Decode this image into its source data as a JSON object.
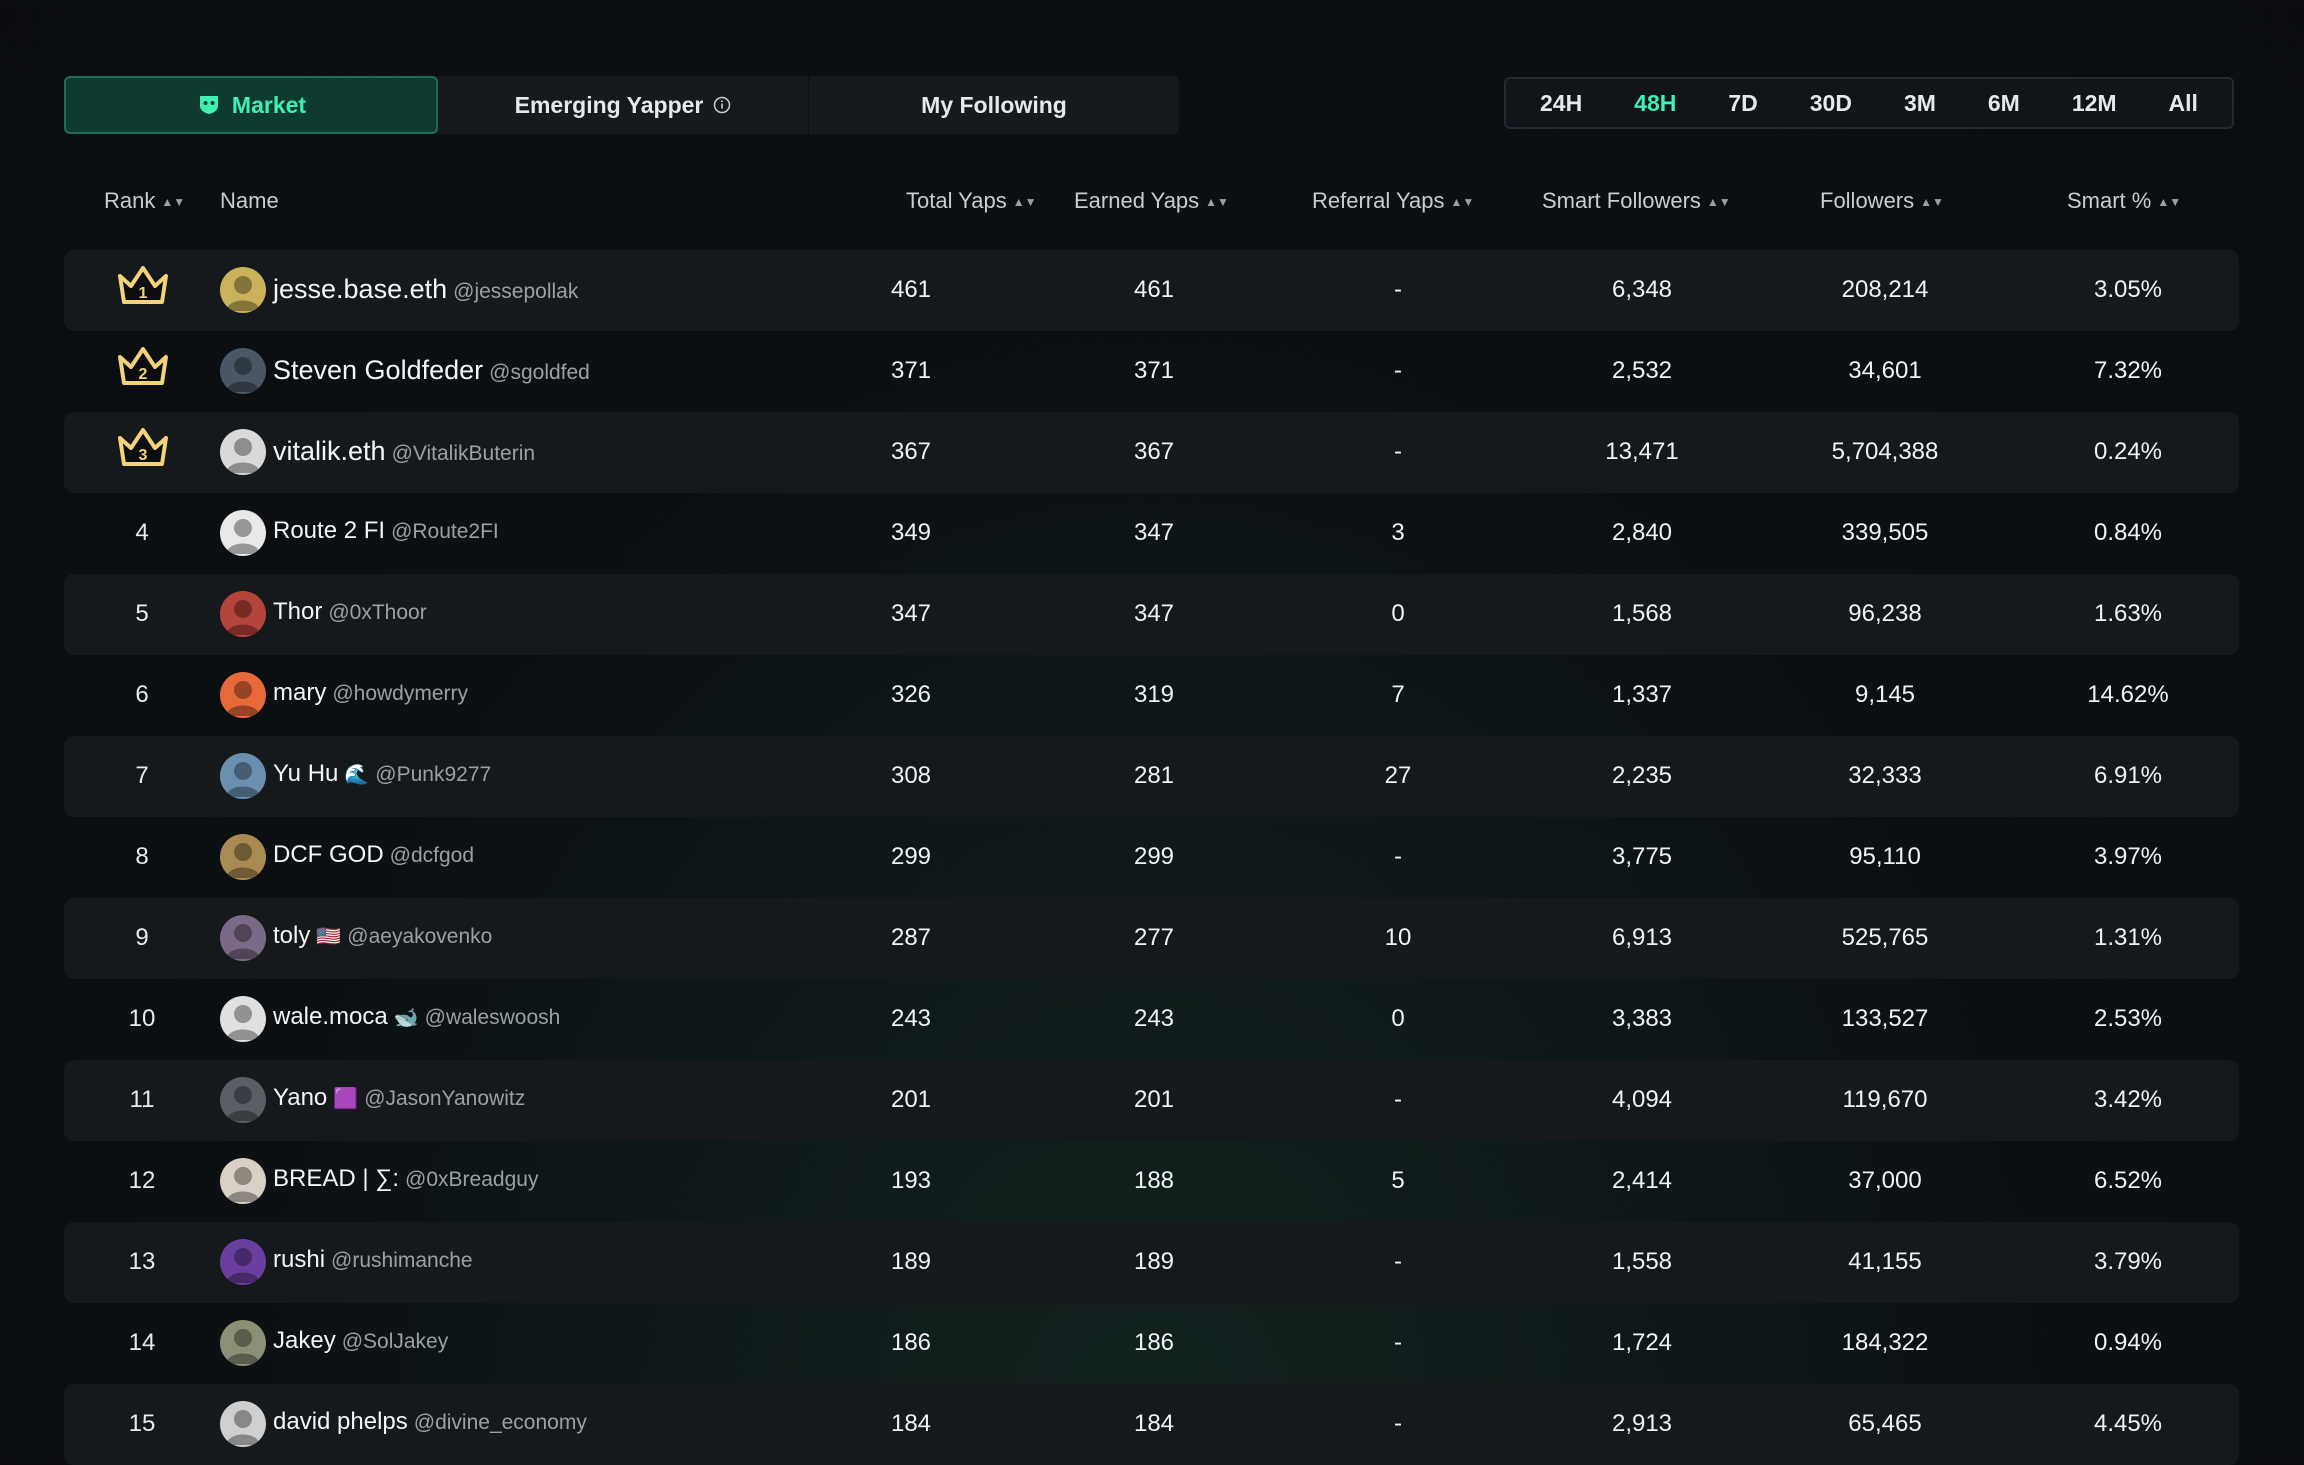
{
  "tabs": [
    {
      "label": "Market",
      "active": true
    },
    {
      "label": "Emerging Yapper",
      "active": false
    },
    {
      "label": "My Following",
      "active": false
    }
  ],
  "time_filters": [
    {
      "label": "24H",
      "active": false
    },
    {
      "label": "48H",
      "active": true
    },
    {
      "label": "7D",
      "active": false
    },
    {
      "label": "30D",
      "active": false
    },
    {
      "label": "3M",
      "active": false
    },
    {
      "label": "6M",
      "active": false
    },
    {
      "label": "12M",
      "active": false
    },
    {
      "label": "All",
      "active": false
    }
  ],
  "columns": {
    "rank": "Rank",
    "name": "Name",
    "total": "Total Yaps",
    "earned": "Earned Yaps",
    "referral": "Referral Yaps",
    "smart_followers": "Smart Followers",
    "followers": "Followers",
    "smart_pct": "Smart %"
  },
  "colors": {
    "accent": "#3ff0b2",
    "crown": "#f2d27a",
    "row_alt": "#16191c"
  },
  "rows": [
    {
      "rank": "1",
      "crown": true,
      "name": "jesse.base.eth",
      "handle": "@jessepollak",
      "total": "461",
      "earned": "461",
      "referral": "-",
      "smart_followers": "6,348",
      "followers": "208,214",
      "smart_pct": "3.05%",
      "avatar_color": "#c9b25a"
    },
    {
      "rank": "2",
      "crown": true,
      "name": "Steven Goldfeder",
      "handle": "@sgoldfed",
      "total": "371",
      "earned": "371",
      "referral": "-",
      "smart_followers": "2,532",
      "followers": "34,601",
      "smart_pct": "7.32%",
      "avatar_color": "#4a5866"
    },
    {
      "rank": "3",
      "crown": true,
      "name": "vitalik.eth",
      "handle": "@VitalikButerin",
      "total": "367",
      "earned": "367",
      "referral": "-",
      "smart_followers": "13,471",
      "followers": "5,704,388",
      "smart_pct": "0.24%",
      "avatar_color": "#d9d9d9"
    },
    {
      "rank": "4",
      "crown": false,
      "name": "Route 2 FI",
      "handle": "@Route2FI",
      "total": "349",
      "earned": "347",
      "referral": "3",
      "smart_followers": "2,840",
      "followers": "339,505",
      "smart_pct": "0.84%",
      "avatar_color": "#e9e9e9"
    },
    {
      "rank": "5",
      "crown": false,
      "name": "Thor",
      "handle": "@0xThoor",
      "total": "347",
      "earned": "347",
      "referral": "0",
      "smart_followers": "1,568",
      "followers": "96,238",
      "smart_pct": "1.63%",
      "avatar_color": "#b5443a"
    },
    {
      "rank": "6",
      "crown": false,
      "name": "mary",
      "handle": "@howdymerry",
      "total": "326",
      "earned": "319",
      "referral": "7",
      "smart_followers": "1,337",
      "followers": "9,145",
      "smart_pct": "14.62%",
      "avatar_color": "#e7693a"
    },
    {
      "rank": "7",
      "crown": false,
      "name": "Yu Hu",
      "emoji": "🌊",
      "handle": "@Punk9277",
      "total": "308",
      "earned": "281",
      "referral": "27",
      "smart_followers": "2,235",
      "followers": "32,333",
      "smart_pct": "6.91%",
      "avatar_color": "#6a8fb0"
    },
    {
      "rank": "8",
      "crown": false,
      "name": "DCF GOD",
      "handle": "@dcfgod",
      "total": "299",
      "earned": "299",
      "referral": "-",
      "smart_followers": "3,775",
      "followers": "95,110",
      "smart_pct": "3.97%",
      "avatar_color": "#a98a52"
    },
    {
      "rank": "9",
      "crown": false,
      "name": "toly",
      "emoji": "🇺🇸",
      "handle": "@aeyakovenko",
      "total": "287",
      "earned": "277",
      "referral": "10",
      "smart_followers": "6,913",
      "followers": "525,765",
      "smart_pct": "1.31%",
      "avatar_color": "#7a6a86"
    },
    {
      "rank": "10",
      "crown": false,
      "name": "wale.moca",
      "emoji": "🐋",
      "handle": "@waleswoosh",
      "total": "243",
      "earned": "243",
      "referral": "0",
      "smart_followers": "3,383",
      "followers": "133,527",
      "smart_pct": "2.53%",
      "avatar_color": "#e0e0e0"
    },
    {
      "rank": "11",
      "crown": false,
      "name": "Yano",
      "emoji": "🟪",
      "handle": "@JasonYanowitz",
      "total": "201",
      "earned": "201",
      "referral": "-",
      "smart_followers": "4,094",
      "followers": "119,670",
      "smart_pct": "3.42%",
      "avatar_color": "#5a5f66"
    },
    {
      "rank": "12",
      "crown": false,
      "name": "BREAD | ∑:",
      "handle": "@0xBreadguy",
      "total": "193",
      "earned": "188",
      "referral": "5",
      "smart_followers": "2,414",
      "followers": "37,000",
      "smart_pct": "6.52%",
      "avatar_color": "#d8d0c4"
    },
    {
      "rank": "13",
      "crown": false,
      "name": "rushi",
      "handle": "@rushimanche",
      "total": "189",
      "earned": "189",
      "referral": "-",
      "smart_followers": "1,558",
      "followers": "41,155",
      "smart_pct": "3.79%",
      "avatar_color": "#6b3fa0"
    },
    {
      "rank": "14",
      "crown": false,
      "name": "Jakey",
      "handle": "@SolJakey",
      "total": "186",
      "earned": "186",
      "referral": "-",
      "smart_followers": "1,724",
      "followers": "184,322",
      "smart_pct": "0.94%",
      "avatar_color": "#8a8f76"
    },
    {
      "rank": "15",
      "crown": false,
      "name": "david phelps",
      "handle": "@divine_economy",
      "total": "184",
      "earned": "184",
      "referral": "-",
      "smart_followers": "2,913",
      "followers": "65,465",
      "smart_pct": "4.45%",
      "avatar_color": "#cfcfcf"
    }
  ]
}
